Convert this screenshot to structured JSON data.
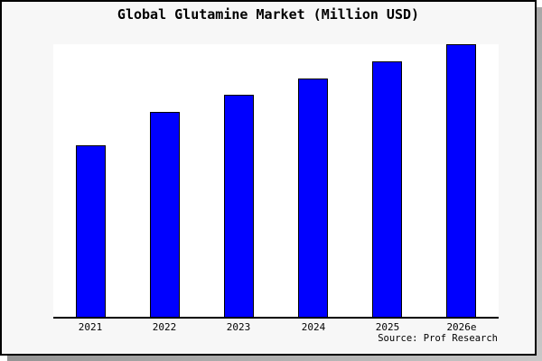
{
  "title": "Global Glutamine Market (Million USD)",
  "source": "Source: Prof Research",
  "card": {
    "background": "#f7f7f7",
    "border_color": "#000000",
    "shadow_color": "#999999"
  },
  "chart_data": {
    "type": "bar",
    "title": "Global Glutamine Market (Million USD)",
    "categories": [
      "2021",
      "2022",
      "2023",
      "2024",
      "2025",
      "2026e"
    ],
    "values": [
      62.8,
      75.1,
      81.4,
      87.4,
      93.7,
      100
    ],
    "value_scale": "relative heights normalized to 2026e = 100; no y-axis tick labels are shown in the chart",
    "xlabel": "",
    "ylabel": "",
    "ylim": [
      0,
      100.3
    ],
    "grid": false,
    "legend": null,
    "bar_color": "#0000ff",
    "bar_border_color": "#000000",
    "plot_background": "#ffffff",
    "axis_color": "#000000",
    "source_note": "Source: Prof Research"
  }
}
